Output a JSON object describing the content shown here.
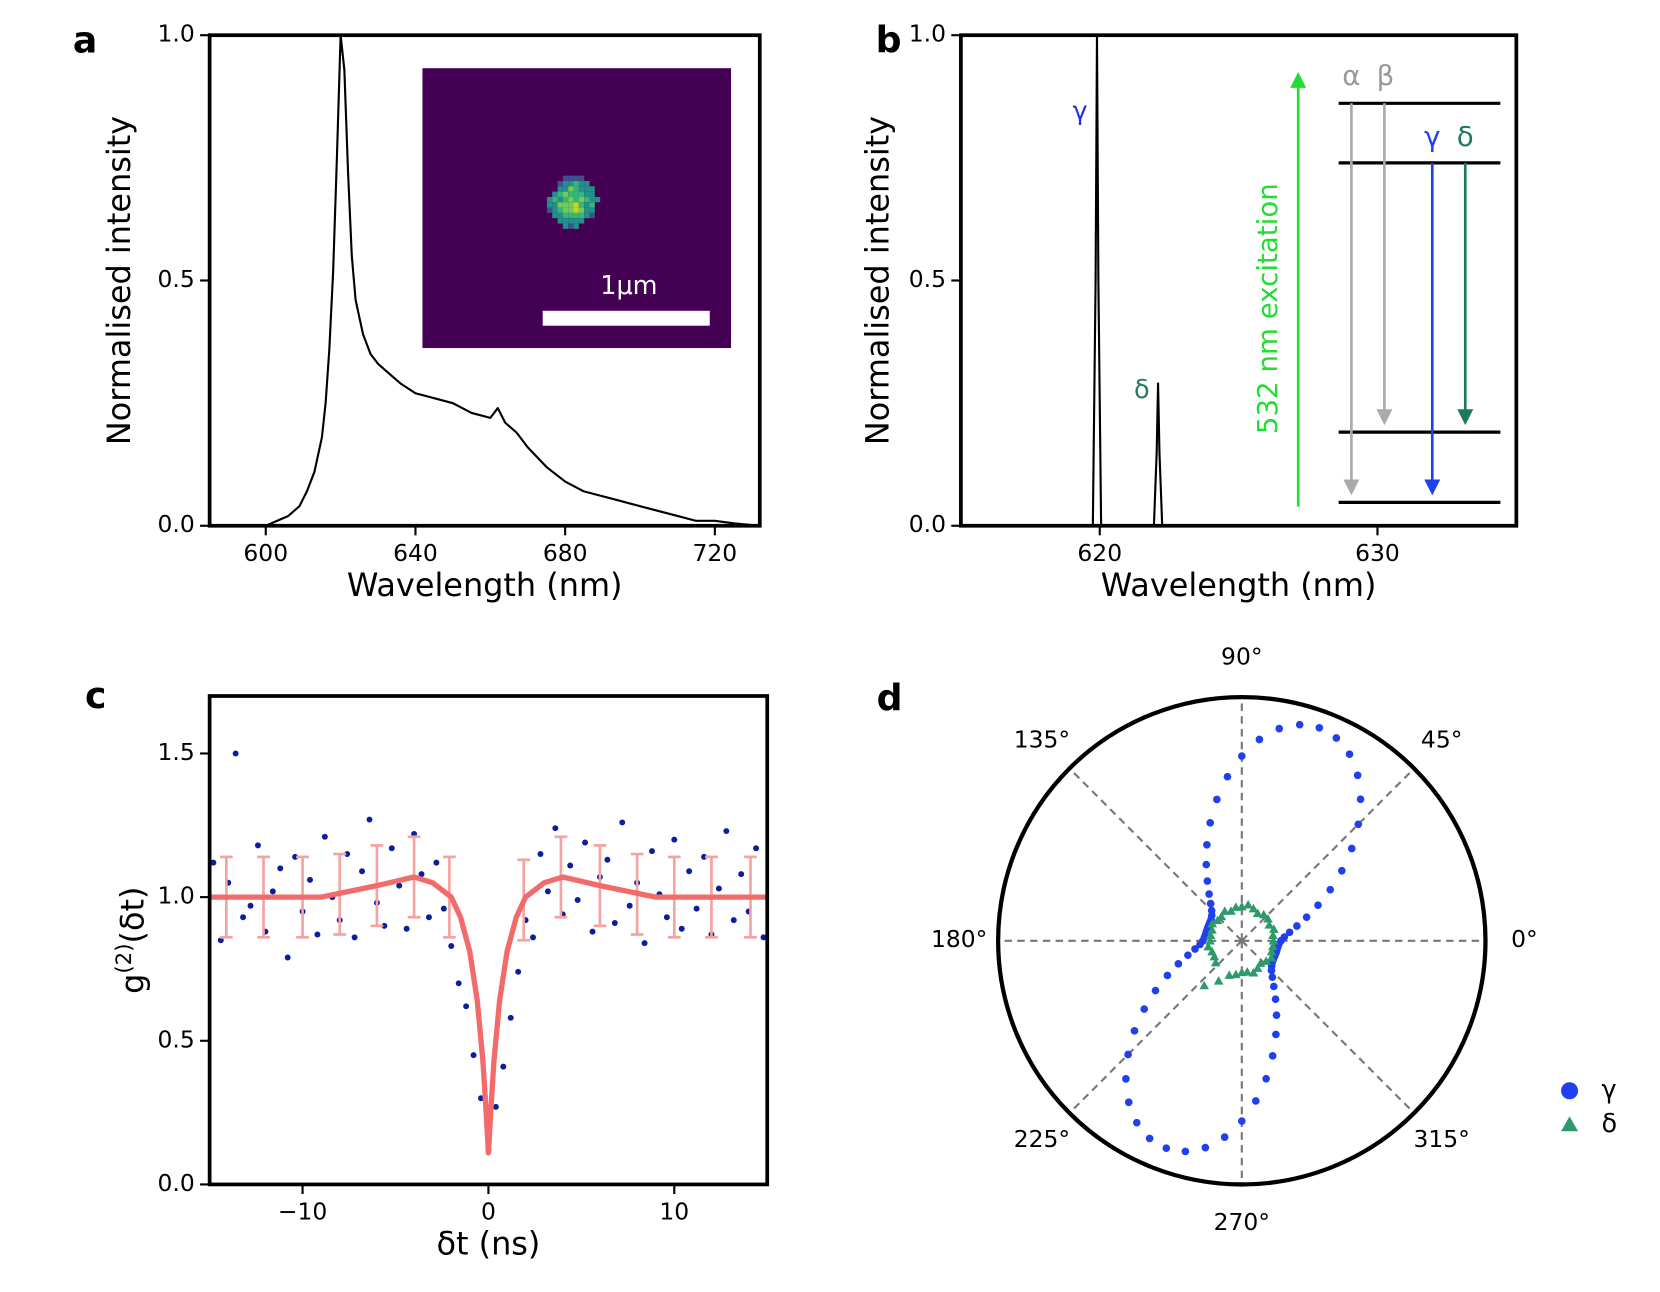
{
  "chart_data": [
    {
      "type": "line",
      "panel_label": "a",
      "x_label": "Wavelength (nm)",
      "y_label": "Normalised intensity",
      "xlim": [
        585,
        732
      ],
      "ylim": [
        0,
        1
      ],
      "xticks": [
        600,
        640,
        680,
        720
      ],
      "yticks": [
        {
          "value": 0,
          "label": "0.0"
        },
        {
          "value": 0.5,
          "label": "0.5"
        },
        {
          "value": 1,
          "label": "1.0"
        }
      ],
      "inset_scale_label": "1μm",
      "series": [
        {
          "color": "#000000",
          "x": [
            585,
            590,
            595,
            600,
            603,
            606,
            609,
            611,
            613,
            615,
            616,
            617,
            618,
            619,
            620,
            621,
            622,
            623,
            624,
            626,
            628,
            630,
            633,
            636,
            640,
            645,
            650,
            655,
            660,
            662,
            664,
            667,
            670,
            675,
            680,
            685,
            690,
            695,
            700,
            705,
            710,
            715,
            720,
            725,
            732
          ],
          "values": [
            0,
            0,
            0,
            0,
            0.01,
            0.02,
            0.04,
            0.07,
            0.11,
            0.18,
            0.25,
            0.36,
            0.52,
            0.75,
            1.0,
            0.93,
            0.72,
            0.55,
            0.46,
            0.39,
            0.35,
            0.33,
            0.31,
            0.29,
            0.27,
            0.26,
            0.25,
            0.23,
            0.22,
            0.24,
            0.21,
            0.19,
            0.16,
            0.12,
            0.09,
            0.07,
            0.06,
            0.05,
            0.04,
            0.03,
            0.02,
            0.01,
            0.01,
            0.005,
            0
          ]
        }
      ]
    },
    {
      "type": "line",
      "panel_label": "b",
      "x_label": "Wavelength (nm)",
      "y_label": "Normalised intensity",
      "xlim": [
        615,
        635
      ],
      "ylim": [
        0,
        1
      ],
      "xticks": [
        620,
        630
      ],
      "yticks": [
        {
          "value": 0,
          "label": "0.0"
        },
        {
          "value": 0.5,
          "label": "0.5"
        },
        {
          "value": 1,
          "label": "1.0"
        }
      ],
      "annotations": [
        {
          "text": "γ",
          "color": "#2233dd"
        },
        {
          "text": "δ",
          "color": "#2a7a5c"
        }
      ],
      "level_labels": [
        {
          "text": "α",
          "color": "#999999"
        },
        {
          "text": "β",
          "color": "#999999"
        },
        {
          "text": "γ",
          "color": "#2040f0"
        },
        {
          "text": "δ",
          "color": "#1f7a5a"
        }
      ],
      "excitation_label": "532 nm excitation",
      "series": [
        {
          "color": "#000000",
          "x": [
            615,
            619.75,
            619.85,
            619.9,
            619.95,
            620.05,
            621.95,
            622.05,
            622.1,
            622.15,
            622.25,
            635
          ],
          "values": [
            0,
            0,
            0.5,
            1.0,
            0.5,
            0,
            0,
            0.15,
            0.29,
            0.15,
            0,
            0
          ]
        }
      ]
    },
    {
      "type": "scatter",
      "panel_label": "c",
      "x_label": "δt (ns)",
      "y_label": "g",
      "y_label_sup": "(2)",
      "y_label_rest": "(δt)",
      "xlim": [
        -15,
        15
      ],
      "ylim": [
        0,
        1.7
      ],
      "xticks": [
        {
          "value": -10,
          "label": "−10"
        },
        0,
        10
      ],
      "yticks": [
        {
          "value": 0,
          "label": "0.0"
        },
        {
          "value": 0.5,
          "label": "0.5"
        },
        {
          "value": 1,
          "label": "1.0"
        },
        {
          "value": 1.5,
          "label": "1.5"
        }
      ],
      "series": [
        {
          "type": "scatter",
          "color": "#0b1f9e",
          "x": [
            -14.8,
            -14.4,
            -14.0,
            -13.6,
            -13.2,
            -12.8,
            -12.4,
            -12.0,
            -11.6,
            -11.2,
            -10.8,
            -10.4,
            -10.0,
            -9.6,
            -9.2,
            -8.8,
            -8.4,
            -8.0,
            -7.6,
            -7.2,
            -6.8,
            -6.4,
            -6.0,
            -5.6,
            -5.2,
            -4.8,
            -4.4,
            -4.0,
            -3.6,
            -3.2,
            -2.8,
            -2.4,
            -2.0,
            -1.6,
            -1.2,
            -0.8,
            -0.4,
            0.0,
            0.4,
            0.8,
            1.2,
            1.6,
            2.0,
            2.4,
            2.8,
            3.2,
            3.6,
            4.0,
            4.4,
            4.8,
            5.2,
            5.6,
            6.0,
            6.4,
            6.8,
            7.2,
            7.6,
            8.0,
            8.4,
            8.8,
            9.2,
            9.6,
            10.0,
            10.4,
            10.8,
            11.2,
            11.6,
            12.0,
            12.4,
            12.8,
            13.2,
            13.6,
            14.0,
            14.4,
            14.8
          ],
          "values": [
            1.12,
            0.85,
            1.05,
            1.5,
            0.93,
            0.97,
            1.18,
            0.88,
            1.02,
            1.1,
            0.79,
            1.14,
            0.95,
            1.06,
            0.87,
            1.21,
            1.0,
            0.92,
            1.15,
            0.86,
            1.09,
            1.27,
            0.98,
            0.9,
            1.17,
            1.04,
            0.89,
            1.22,
            1.08,
            0.93,
            1.12,
            0.96,
            0.83,
            0.7,
            0.62,
            0.45,
            0.3,
            0.12,
            0.27,
            0.41,
            0.58,
            0.74,
            0.92,
            0.86,
            1.15,
            1.02,
            1.24,
            0.94,
            1.11,
            0.99,
            1.19,
            0.88,
            1.07,
            1.13,
            0.91,
            1.26,
            0.97,
            1.05,
            0.84,
            1.16,
            1.01,
            0.93,
            1.2,
            0.89,
            1.09,
            0.96,
            1.14,
            0.87,
            1.03,
            1.23,
            0.92,
            1.08,
            0.95,
            1.17,
            0.86
          ]
        },
        {
          "type": "errorbar",
          "color": "#f4a3a0",
          "x": [
            -14.1,
            -12.1,
            -10.0,
            -8.0,
            -6.0,
            -4.0,
            -2.1,
            1.9,
            3.9,
            6.0,
            8.0,
            10.0,
            12.0,
            14.1
          ],
          "values": [
            1.0,
            1.0,
            1.0,
            1.01,
            1.04,
            1.07,
            1.0,
            0.99,
            1.07,
            1.04,
            1.01,
            1.0,
            1.0,
            1.0
          ],
          "errors": [
            0.14,
            0.14,
            0.14,
            0.14,
            0.14,
            0.14,
            0.14,
            0.14,
            0.14,
            0.14,
            0.14,
            0.14,
            0.14,
            0.14
          ]
        },
        {
          "type": "line",
          "color": "#f26b6b",
          "x": [
            -15,
            -12,
            -9,
            -6,
            -4,
            -3,
            -2,
            -1.5,
            -1,
            -0.6,
            -0.3,
            -0.15,
            0,
            0.15,
            0.3,
            0.6,
            1,
            1.5,
            2,
            3,
            4,
            6,
            9,
            12,
            15
          ],
          "values": [
            1.0,
            1.0,
            1.0,
            1.04,
            1.07,
            1.05,
            1.0,
            0.93,
            0.81,
            0.64,
            0.43,
            0.28,
            0.11,
            0.28,
            0.43,
            0.64,
            0.81,
            0.93,
            1.0,
            1.05,
            1.07,
            1.04,
            1.0,
            1.0,
            1.0
          ]
        }
      ]
    },
    {
      "type": "polar",
      "panel_label": "d",
      "rlim": [
        0,
        1
      ],
      "legend": "lower right",
      "thetaticks": [
        {
          "value": 0,
          "label": "0°"
        },
        {
          "value": 45,
          "label": "45°"
        },
        {
          "value": 90,
          "label": "90°"
        },
        {
          "value": 135,
          "label": "135°"
        },
        {
          "value": 180,
          "label": "180°"
        },
        {
          "value": 225,
          "label": "225°"
        },
        {
          "value": 270,
          "label": "270°"
        },
        {
          "value": 315,
          "label": "315°"
        }
      ],
      "series": [
        {
          "name": "γ",
          "marker": "circle",
          "color": "#2040f0",
          "theta": [
            0,
            5,
            10,
            15,
            20,
            25,
            30,
            35,
            40,
            45,
            50,
            55,
            60,
            65,
            70,
            75,
            80,
            85,
            90,
            95,
            100,
            105,
            110,
            115,
            120,
            125,
            130,
            135,
            140,
            145,
            150,
            155,
            160,
            165,
            170,
            175,
            180,
            185,
            190,
            195,
            200,
            205,
            210,
            215,
            220,
            225,
            230,
            235,
            240,
            245,
            250,
            255,
            260,
            265,
            270,
            275,
            280,
            285,
            290,
            295,
            300,
            305,
            310,
            315,
            320,
            325,
            330,
            335,
            340,
            345,
            350,
            355
          ],
          "values": [
            0.161,
            0.175,
            0.199,
            0.234,
            0.283,
            0.345,
            0.419,
            0.501,
            0.589,
            0.676,
            0.758,
            0.829,
            0.884,
            0.918,
            0.93,
            0.918,
            0.884,
            0.829,
            0.758,
            0.676,
            0.589,
            0.501,
            0.419,
            0.345,
            0.283,
            0.234,
            0.199,
            0.175,
            0.161,
            0.154,
            0.151,
            0.15,
            0.15,
            0.15,
            0.151,
            0.154,
            0.16,
            0.172,
            0.195,
            0.229,
            0.277,
            0.337,
            0.409,
            0.489,
            0.575,
            0.66,
            0.74,
            0.809,
            0.862,
            0.895,
            0.906,
            0.895,
            0.862,
            0.809,
            0.74,
            0.66,
            0.575,
            0.489,
            0.409,
            0.337,
            0.277,
            0.229,
            0.195,
            0.172,
            0.16,
            0.153,
            0.15,
            0.149,
            0.149,
            0.149,
            0.15,
            0.153
          ]
        },
        {
          "name": "δ",
          "marker": "triangle",
          "color": "#2e9a6c",
          "theta": [
            0,
            10,
            20,
            30,
            40,
            50,
            60,
            70,
            80,
            90,
            100,
            110,
            120,
            130,
            140,
            150,
            160,
            170,
            180,
            190,
            200,
            210,
            220,
            230,
            240,
            250,
            260,
            270,
            280,
            290,
            300,
            310,
            320,
            330,
            340,
            350
          ],
          "values": [
            0.13,
            0.13,
            0.14,
            0.13,
            0.14,
            0.14,
            0.13,
            0.14,
            0.15,
            0.14,
            0.14,
            0.13,
            0.14,
            0.13,
            0.13,
            0.14,
            0.13,
            0.13,
            0.13,
            0.14,
            0.13,
            0.13,
            0.14,
            0.24,
            0.19,
            0.15,
            0.14,
            0.13,
            0.13,
            0.14,
            0.13,
            0.12,
            0.13,
            0.14,
            0.13,
            0.13
          ]
        }
      ]
    }
  ]
}
